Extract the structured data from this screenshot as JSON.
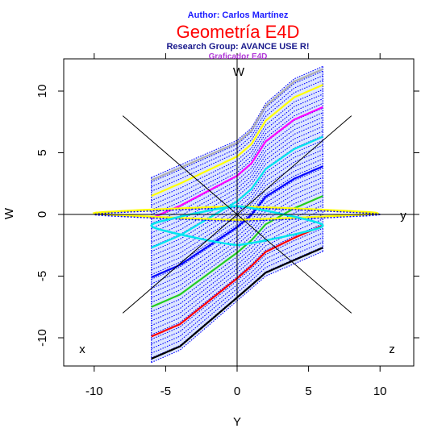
{
  "header": {
    "author": "Author: Carlos Martínez",
    "title": "Geometría E4D",
    "group": "Research Group: AVANCE USE R!",
    "subtitle": "Graficador E4D"
  },
  "colors": {
    "author": "#1a1aff",
    "title": "#ff0000",
    "group": "#1a1a8c",
    "subtitle": "#b23bd8",
    "mesh": "#0000ff",
    "curves": [
      "#000000",
      "#ff0000",
      "#22cc22",
      "#0000ff",
      "#00e5ee",
      "#ff00ff",
      "#ffff00",
      "#b0b0b0"
    ]
  },
  "chart_data": {
    "type": "line",
    "xlabel": "Y",
    "ylabel": "W",
    "xlim": [
      -12.5,
      12.5
    ],
    "ylim": [
      -12.5,
      12.5
    ],
    "xticks": [
      -10,
      -5,
      0,
      5,
      10
    ],
    "yticks": [
      -10,
      -5,
      0,
      5,
      10
    ],
    "axis_labels": {
      "w": "W",
      "y": "y",
      "x": "x",
      "z": "z"
    },
    "surface": {
      "y_range": [
        -6,
        6
      ],
      "lower_edge": [
        [
          -6,
          -12
        ],
        [
          -4,
          -11
        ],
        [
          -2,
          -9
        ],
        [
          0,
          -7
        ],
        [
          1,
          -6
        ],
        [
          2,
          -5
        ],
        [
          4,
          -4
        ],
        [
          6,
          -3
        ]
      ],
      "upper_edge": [
        [
          -6,
          3
        ],
        [
          -4,
          4
        ],
        [
          -2,
          5
        ],
        [
          0,
          6
        ],
        [
          1,
          7
        ],
        [
          2,
          9
        ],
        [
          4,
          11
        ],
        [
          6,
          12
        ]
      ]
    },
    "loops": [
      {
        "color": "yellow",
        "y_range": [
          -10,
          9.8
        ],
        "w_center": 0.1
      },
      {
        "color": "blue",
        "y_range": [
          -10,
          10
        ],
        "w_center": 0.0
      },
      {
        "color": "cyan",
        "y_range": [
          -6,
          6
        ],
        "w_center": -0.9
      }
    ],
    "diagonal_axes": [
      {
        "from": [
          -8,
          8
        ],
        "to": [
          8,
          -8
        ],
        "label": "x"
      },
      {
        "from": [
          -8,
          -8
        ],
        "to": [
          8,
          8
        ],
        "label": "z"
      }
    ]
  }
}
